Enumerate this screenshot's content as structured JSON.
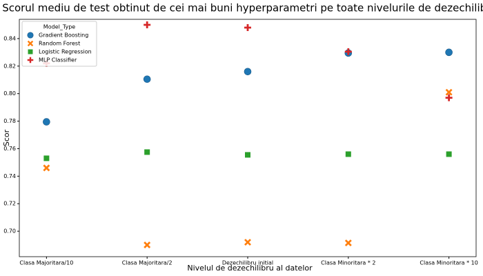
{
  "chart_data": {
    "type": "scatter",
    "title": "Scorul mediu de test obtinut de cei mai buni hyperparametri pe toate nivelurile de dezechilibru",
    "xlabel": "Nivelul de dezechilibru al datelor",
    "ylabel": "Scor",
    "categories": [
      "Clasa Majoritara/10",
      "Clasa Majoritara/2",
      "Dezechilibru initial",
      "Clasa Minoritara * 2",
      "Clasa Minoritara * 10"
    ],
    "legend_title": "Model_Type",
    "legend_position": "upper left",
    "series": [
      {
        "name": "Gradient Boosting",
        "color": "#1f77b4",
        "marker": "circle",
        "values": [
          0.7795,
          0.8105,
          0.816,
          0.8295,
          0.83
        ]
      },
      {
        "name": "Random Forest",
        "color": "#ff7f0e",
        "marker": "x",
        "values": [
          0.746,
          0.69,
          0.692,
          0.6915,
          0.801
        ]
      },
      {
        "name": "Logistic Regression",
        "color": "#2ca02c",
        "marker": "square",
        "values": [
          0.753,
          0.7575,
          0.7555,
          0.756,
          0.756
        ]
      },
      {
        "name": "MLP Classifier",
        "color": "#d62728",
        "marker": "plus",
        "values": [
          0.822,
          0.85,
          0.848,
          0.8305,
          0.797
        ]
      }
    ],
    "ylim": [
      0.6815,
      0.854
    ],
    "yticks": [
      {
        "value": 0.7,
        "label": "0.70"
      },
      {
        "value": 0.72,
        "label": "0.72"
      },
      {
        "value": 0.74,
        "label": "0.74"
      },
      {
        "value": 0.76,
        "label": "0.76"
      },
      {
        "value": 0.78,
        "label": "0.78"
      },
      {
        "value": 0.8,
        "label": "0.80"
      },
      {
        "value": 0.82,
        "label": "0.82"
      },
      {
        "value": 0.84,
        "label": "0.84"
      }
    ]
  }
}
